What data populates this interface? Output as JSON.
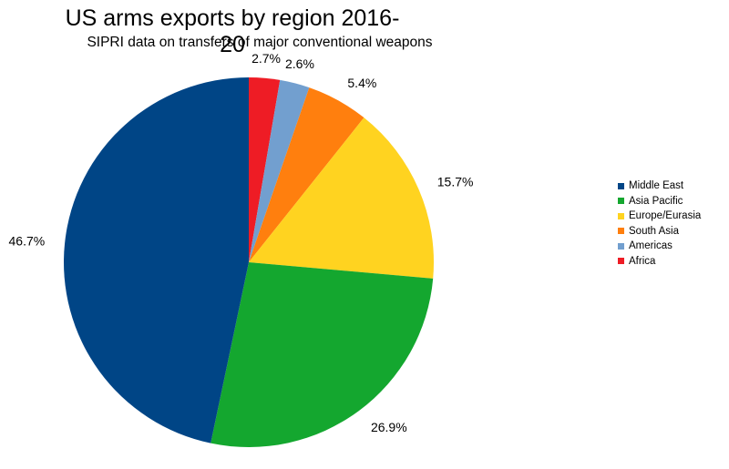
{
  "chart_data": {
    "type": "pie",
    "title": "US arms exports by region 2016-20",
    "subtitle": "SIPRI data on transfers of major conventional weapons",
    "start_angle_deg": 0,
    "direction": "clockwise",
    "slices": [
      {
        "name": "Africa",
        "value": 2.7,
        "label": "2.7%",
        "color": "#ee1c25"
      },
      {
        "name": "Americas",
        "value": 2.6,
        "label": "2.6%",
        "color": "#729fcf"
      },
      {
        "name": "South Asia",
        "value": 5.4,
        "label": "5.4%",
        "color": "#ff7f0e"
      },
      {
        "name": "Europe/Eurasia",
        "value": 15.7,
        "label": "15.7%",
        "color": "#ffd320"
      },
      {
        "name": "Asia Pacific",
        "value": 26.9,
        "label": "26.9%",
        "color": "#14a72f"
      },
      {
        "name": "Middle East",
        "value": 46.7,
        "label": "46.7%",
        "color": "#004586"
      }
    ],
    "legend": {
      "placement": "right",
      "items": [
        {
          "name": "Middle East",
          "color": "#004586"
        },
        {
          "name": "Asia Pacific",
          "color": "#14a72f"
        },
        {
          "name": "Europe/Eurasia",
          "color": "#ffd320"
        },
        {
          "name": "South Asia",
          "color": "#ff7f0e"
        },
        {
          "name": "Americas",
          "color": "#729fcf"
        },
        {
          "name": "Africa",
          "color": "#ee1c25"
        }
      ]
    }
  }
}
